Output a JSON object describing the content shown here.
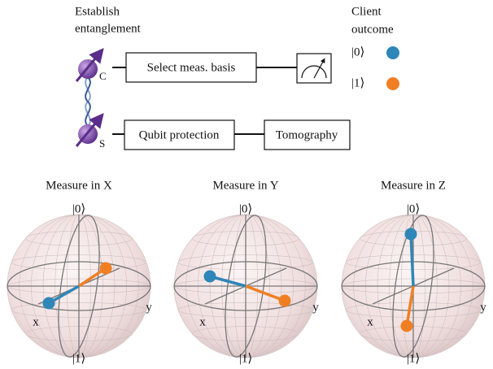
{
  "top_panel": {
    "title_lines": [
      "Establish",
      "entanglement"
    ],
    "qubits": [
      "C",
      "S"
    ],
    "boxes": [
      "Select meas. basis",
      "Qubit protection",
      "Tomography"
    ],
    "legend": {
      "title_lines": [
        "Client",
        "outcome"
      ],
      "entries": [
        {
          "label": "|0⟩",
          "color": "#2f86b8"
        },
        {
          "label": "|1⟩",
          "color": "#f07f23"
        }
      ]
    }
  },
  "spheres": [
    {
      "title": "Measure in X",
      "top": "|0⟩",
      "bottom": "|1⟩",
      "x_label": "x",
      "y_label": "y"
    },
    {
      "title": "Measure in Y",
      "top": "|0⟩",
      "bottom": "|1⟩",
      "x_label": "x",
      "y_label": "y"
    },
    {
      "title": "Measure in Z",
      "top": "|0⟩",
      "bottom": "|1⟩",
      "x_label": "x",
      "y_label": "y"
    }
  ]
}
